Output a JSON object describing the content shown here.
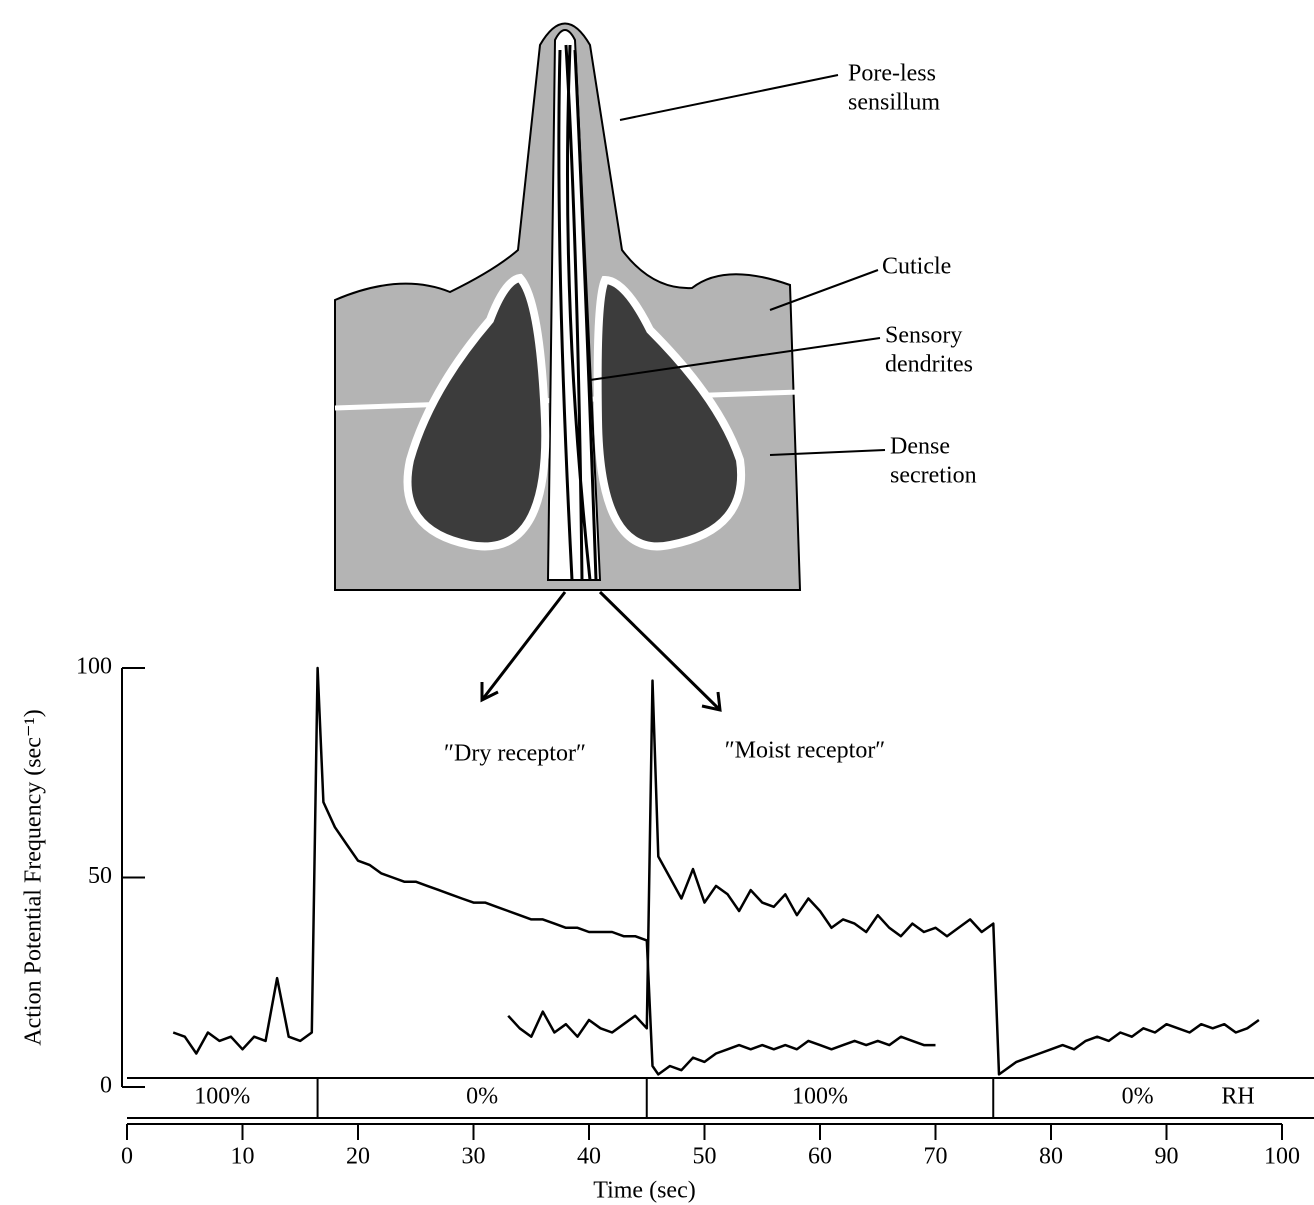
{
  "diagram": {
    "labels": [
      {
        "lines": [
          "Pore-less",
          "sensillum"
        ]
      },
      {
        "lines": [
          "Cuticle"
        ]
      },
      {
        "lines": [
          "Sensory",
          "dendrites"
        ]
      },
      {
        "lines": [
          "Dense",
          "secretion"
        ]
      }
    ]
  },
  "chart_data": {
    "type": "line",
    "xlabel": "Time (sec)",
    "ylabel": "Action Potential Frequency (sec⁻¹)",
    "xlim": [
      0,
      100
    ],
    "xticks": [
      0,
      10,
      20,
      30,
      40,
      50,
      60,
      70,
      80,
      90,
      100
    ],
    "ylim": [
      0,
      100
    ],
    "yticks": [
      0,
      50,
      100
    ],
    "rh_segments": [
      "100%",
      "0%",
      "100%",
      "0%"
    ],
    "rh_boundaries": [
      16.5,
      45,
      75
    ],
    "rh_unit": "RH",
    "x": [
      4,
      5,
      6,
      7,
      8,
      9,
      10,
      11,
      12,
      13,
      14,
      15,
      16,
      16.5,
      17,
      18,
      19,
      20,
      21,
      22,
      23,
      24,
      25,
      26,
      27,
      28,
      29,
      30,
      31,
      32,
      33,
      34,
      35,
      36,
      37,
      38,
      39,
      40,
      41,
      42,
      43,
      44,
      45,
      45.5,
      46,
      47,
      48,
      49,
      50,
      51,
      52,
      53,
      54,
      55,
      56,
      57,
      58,
      59,
      60,
      61,
      62,
      63,
      64,
      65,
      66,
      67,
      68,
      69,
      70,
      71,
      72,
      73,
      74,
      75,
      75.5,
      76,
      77,
      78,
      79,
      80,
      81,
      82,
      83,
      84,
      85,
      86,
      87,
      88,
      89,
      90,
      91,
      92,
      93,
      94,
      95,
      96,
      97,
      98
    ],
    "series": [
      {
        "name": "″Dry receptor″",
        "color": "#000000",
        "values": [
          13,
          12,
          8,
          13,
          11,
          12,
          9,
          12,
          11,
          26,
          12,
          11,
          13,
          100,
          68,
          62,
          58,
          54,
          53,
          51,
          50,
          49,
          49,
          48,
          47,
          46,
          45,
          44,
          44,
          43,
          42,
          41,
          40,
          40,
          39,
          38,
          38,
          37,
          37,
          37,
          36,
          36,
          35,
          5,
          3,
          5,
          4,
          7,
          6,
          8,
          9,
          10,
          9,
          10,
          9,
          10,
          9,
          11,
          10,
          9,
          10,
          11,
          10,
          11,
          10,
          12,
          11,
          10,
          10,
          null,
          null,
          null,
          null,
          null,
          null,
          null,
          null,
          null,
          null,
          null,
          null,
          null,
          null,
          null,
          null,
          null,
          null,
          null,
          null,
          null,
          null,
          null,
          null,
          null,
          null,
          null,
          null,
          null
        ]
      },
      {
        "name": "″Moist receptor″",
        "color": "#000000",
        "values": [
          null,
          null,
          null,
          null,
          null,
          null,
          null,
          null,
          null,
          null,
          null,
          null,
          null,
          null,
          null,
          null,
          null,
          null,
          null,
          null,
          null,
          null,
          null,
          null,
          null,
          null,
          null,
          null,
          null,
          null,
          17,
          14,
          12,
          18,
          13,
          15,
          12,
          16,
          14,
          13,
          15,
          17,
          14,
          97,
          55,
          50,
          45,
          52,
          44,
          48,
          46,
          42,
          47,
          44,
          43,
          46,
          41,
          45,
          42,
          38,
          40,
          39,
          37,
          41,
          38,
          36,
          39,
          37,
          38,
          36,
          38,
          40,
          37,
          39,
          3,
          4,
          6,
          7,
          8,
          9,
          10,
          9,
          11,
          12,
          11,
          13,
          12,
          14,
          13,
          15,
          14,
          13,
          15,
          14,
          15,
          13,
          14,
          16
        ]
      }
    ]
  }
}
